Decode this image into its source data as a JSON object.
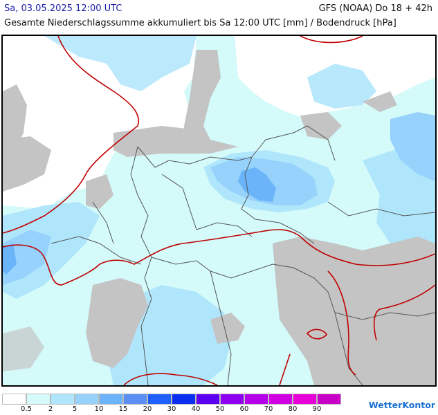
{
  "header": {
    "date": "Sa, 03.05.2025 12:00 UTC",
    "model": "GFS (NOAA) Do 18 + 42h",
    "description": "Gesamte Niederschlagssumme akkumuliert bis Sa 12:00 UTC [mm] / Bodendruck [hPa]"
  },
  "legend": {
    "colors": [
      "#ffffff",
      "#d4fafa",
      "#b0e6fb",
      "#96d2fb",
      "#6cb4f9",
      "#5b8ff4",
      "#1e60fb",
      "#0b2ff0",
      "#5b00f0",
      "#8f00f2",
      "#b400ea",
      "#d000e2",
      "#e800d8",
      "#c800c8"
    ],
    "ticks": [
      "0.5",
      "2",
      "5",
      "10",
      "15",
      "20",
      "30",
      "40",
      "50",
      "60",
      "70",
      "80",
      "90"
    ]
  },
  "brand": "WetterKontor",
  "map_colors": {
    "sea": "#ffffff",
    "land_light": "#d4fafa",
    "rain_light": "#b0e6fb",
    "rain_mid": "#96d2fb",
    "rain_heavy": "#6cb4f9",
    "dry_grey": "#c4c4c4",
    "isobar": "#c00000",
    "border": "#555555"
  }
}
